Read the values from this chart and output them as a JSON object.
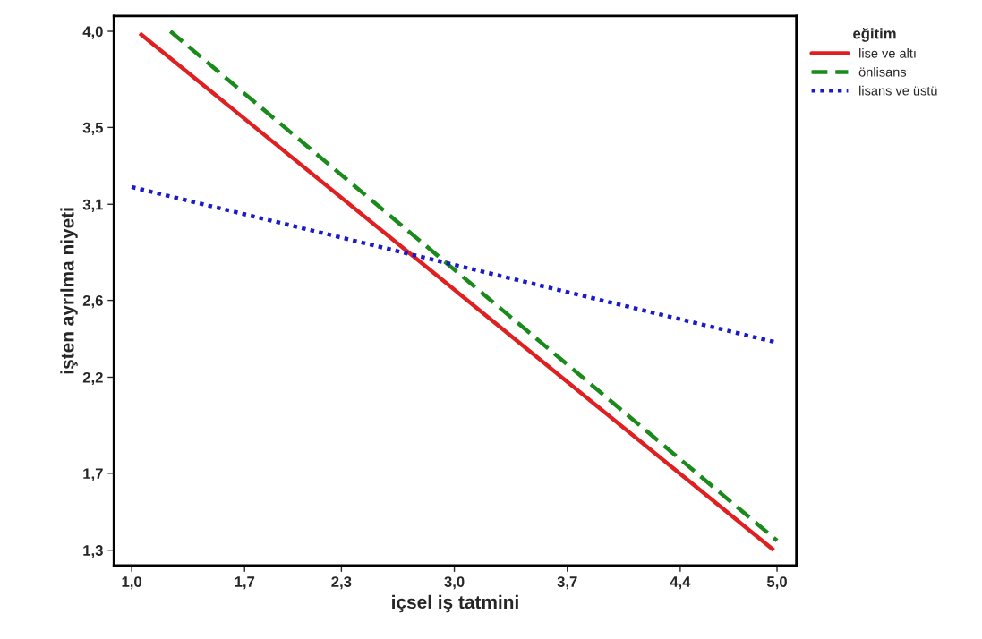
{
  "chart_data": {
    "type": "line",
    "xlabel": "içsel iş tatmini",
    "ylabel": "işten ayrılma niyeti",
    "legend_title": "eğitim",
    "legend": "top right",
    "grid": false,
    "series": [
      {
        "name": "lise ve altı",
        "color": "#e02020",
        "line_style": "solid",
        "x": [
          1.05,
          4.98
        ],
        "values": [
          3.99,
          1.3
        ]
      },
      {
        "name": "önlisans",
        "color": "#1a8a1a",
        "line_style": "dashed",
        "x": [
          1.24,
          5.0
        ],
        "values": [
          4.0,
          1.35
        ]
      },
      {
        "name": "lisans ve üstü",
        "color": "#1a1ac8",
        "line_style": "dotted",
        "x": [
          1.0,
          5.0
        ],
        "values": [
          3.19,
          2.38
        ]
      }
    ],
    "xlim": [
      0.89,
      5.12
    ],
    "ylim": [
      1.22,
      4.08
    ],
    "xticks": [
      {
        "value": 1.0,
        "label": "1,0"
      },
      {
        "value": 1.7,
        "label": "1,7"
      },
      {
        "value": 2.3,
        "label": "2,3"
      },
      {
        "value": 3.0,
        "label": "3,0"
      },
      {
        "value": 3.7,
        "label": "3,7"
      },
      {
        "value": 4.4,
        "label": "4,4"
      },
      {
        "value": 5.0,
        "label": "5,0"
      }
    ],
    "yticks": [
      {
        "value": 1.3,
        "label": "1,3"
      },
      {
        "value": 1.7,
        "label": "1,7"
      },
      {
        "value": 2.2,
        "label": "2,2"
      },
      {
        "value": 2.6,
        "label": "2,6"
      },
      {
        "value": 3.1,
        "label": "3,1"
      },
      {
        "value": 3.5,
        "label": "3,5"
      },
      {
        "value": 4.0,
        "label": "4,0"
      }
    ]
  }
}
